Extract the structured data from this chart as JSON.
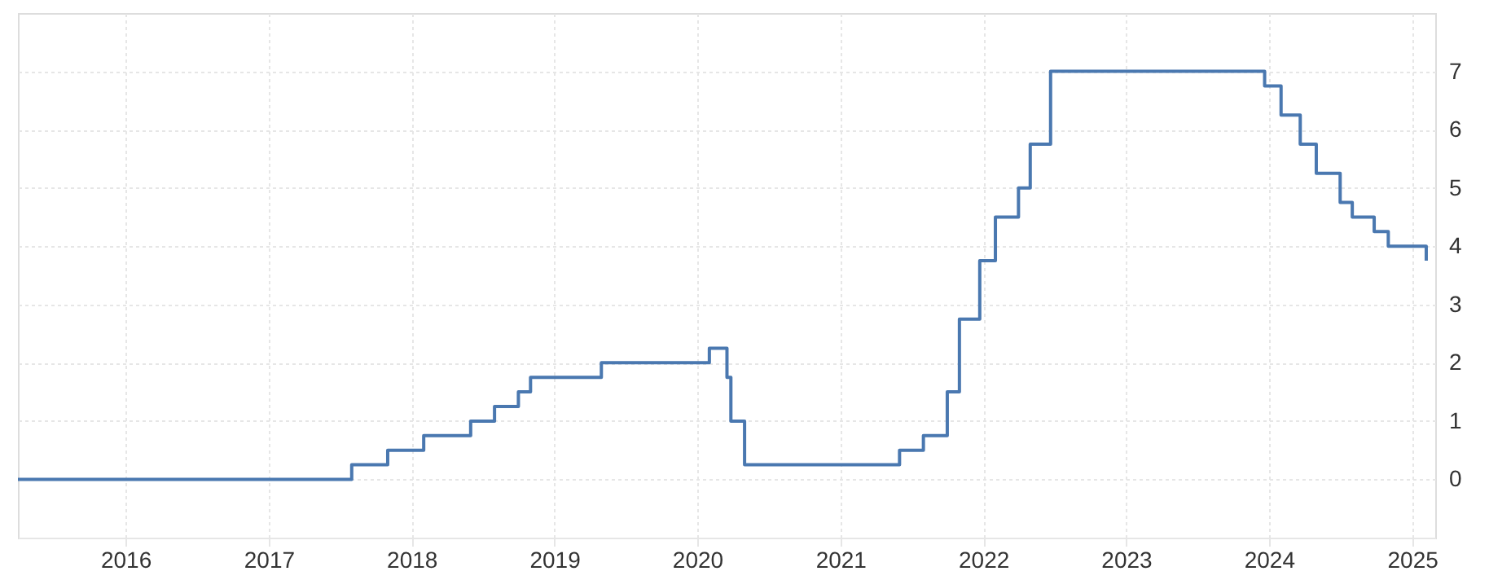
{
  "chart_data": {
    "type": "step",
    "x": [
      "2015-04",
      "2017-08",
      "2017-11",
      "2018-02",
      "2018-06",
      "2018-08",
      "2018-10",
      "2018-11",
      "2019-05",
      "2020-02",
      "2020-03-17",
      "2020-03-27",
      "2020-05",
      "2021-06",
      "2021-08",
      "2021-10",
      "2021-11",
      "2021-12-23",
      "2022-02",
      "2022-04",
      "2022-05",
      "2022-06-22",
      "2023-12-21",
      "2024-02",
      "2024-03-21",
      "2024-05",
      "2024-07",
      "2024-08",
      "2024-09-26",
      "2024-11",
      "2025-02-06"
    ],
    "series": [
      {
        "color": "#4a78b0",
        "values": [
          0,
          0.25,
          0.5,
          0.75,
          1.0,
          1.25,
          1.5,
          1.75,
          2.0,
          2.25,
          1.75,
          1.0,
          0.25,
          0.5,
          0.75,
          1.5,
          2.75,
          3.75,
          4.5,
          5.0,
          5.75,
          7.0,
          6.75,
          6.25,
          5.75,
          5.25,
          4.75,
          4.5,
          4.25,
          4.0,
          3.75
        ]
      }
    ],
    "xlim": [
      "2015-04",
      "2025-03"
    ],
    "xticks": [
      {
        "value": "2016",
        "label": "2016"
      },
      {
        "value": "2017",
        "label": "2017"
      },
      {
        "value": "2018",
        "label": "2018"
      },
      {
        "value": "2019",
        "label": "2019"
      },
      {
        "value": "2020",
        "label": "2020"
      },
      {
        "value": "2021",
        "label": "2021"
      },
      {
        "value": "2022",
        "label": "2022"
      },
      {
        "value": "2023",
        "label": "2023"
      },
      {
        "value": "2024",
        "label": "2024"
      },
      {
        "value": "2025",
        "label": "2025"
      }
    ],
    "ylim": [
      -1,
      8
    ],
    "yticks": [
      0,
      1,
      2,
      3,
      4,
      5,
      6,
      7
    ],
    "grid": true,
    "line_style": "solid"
  }
}
